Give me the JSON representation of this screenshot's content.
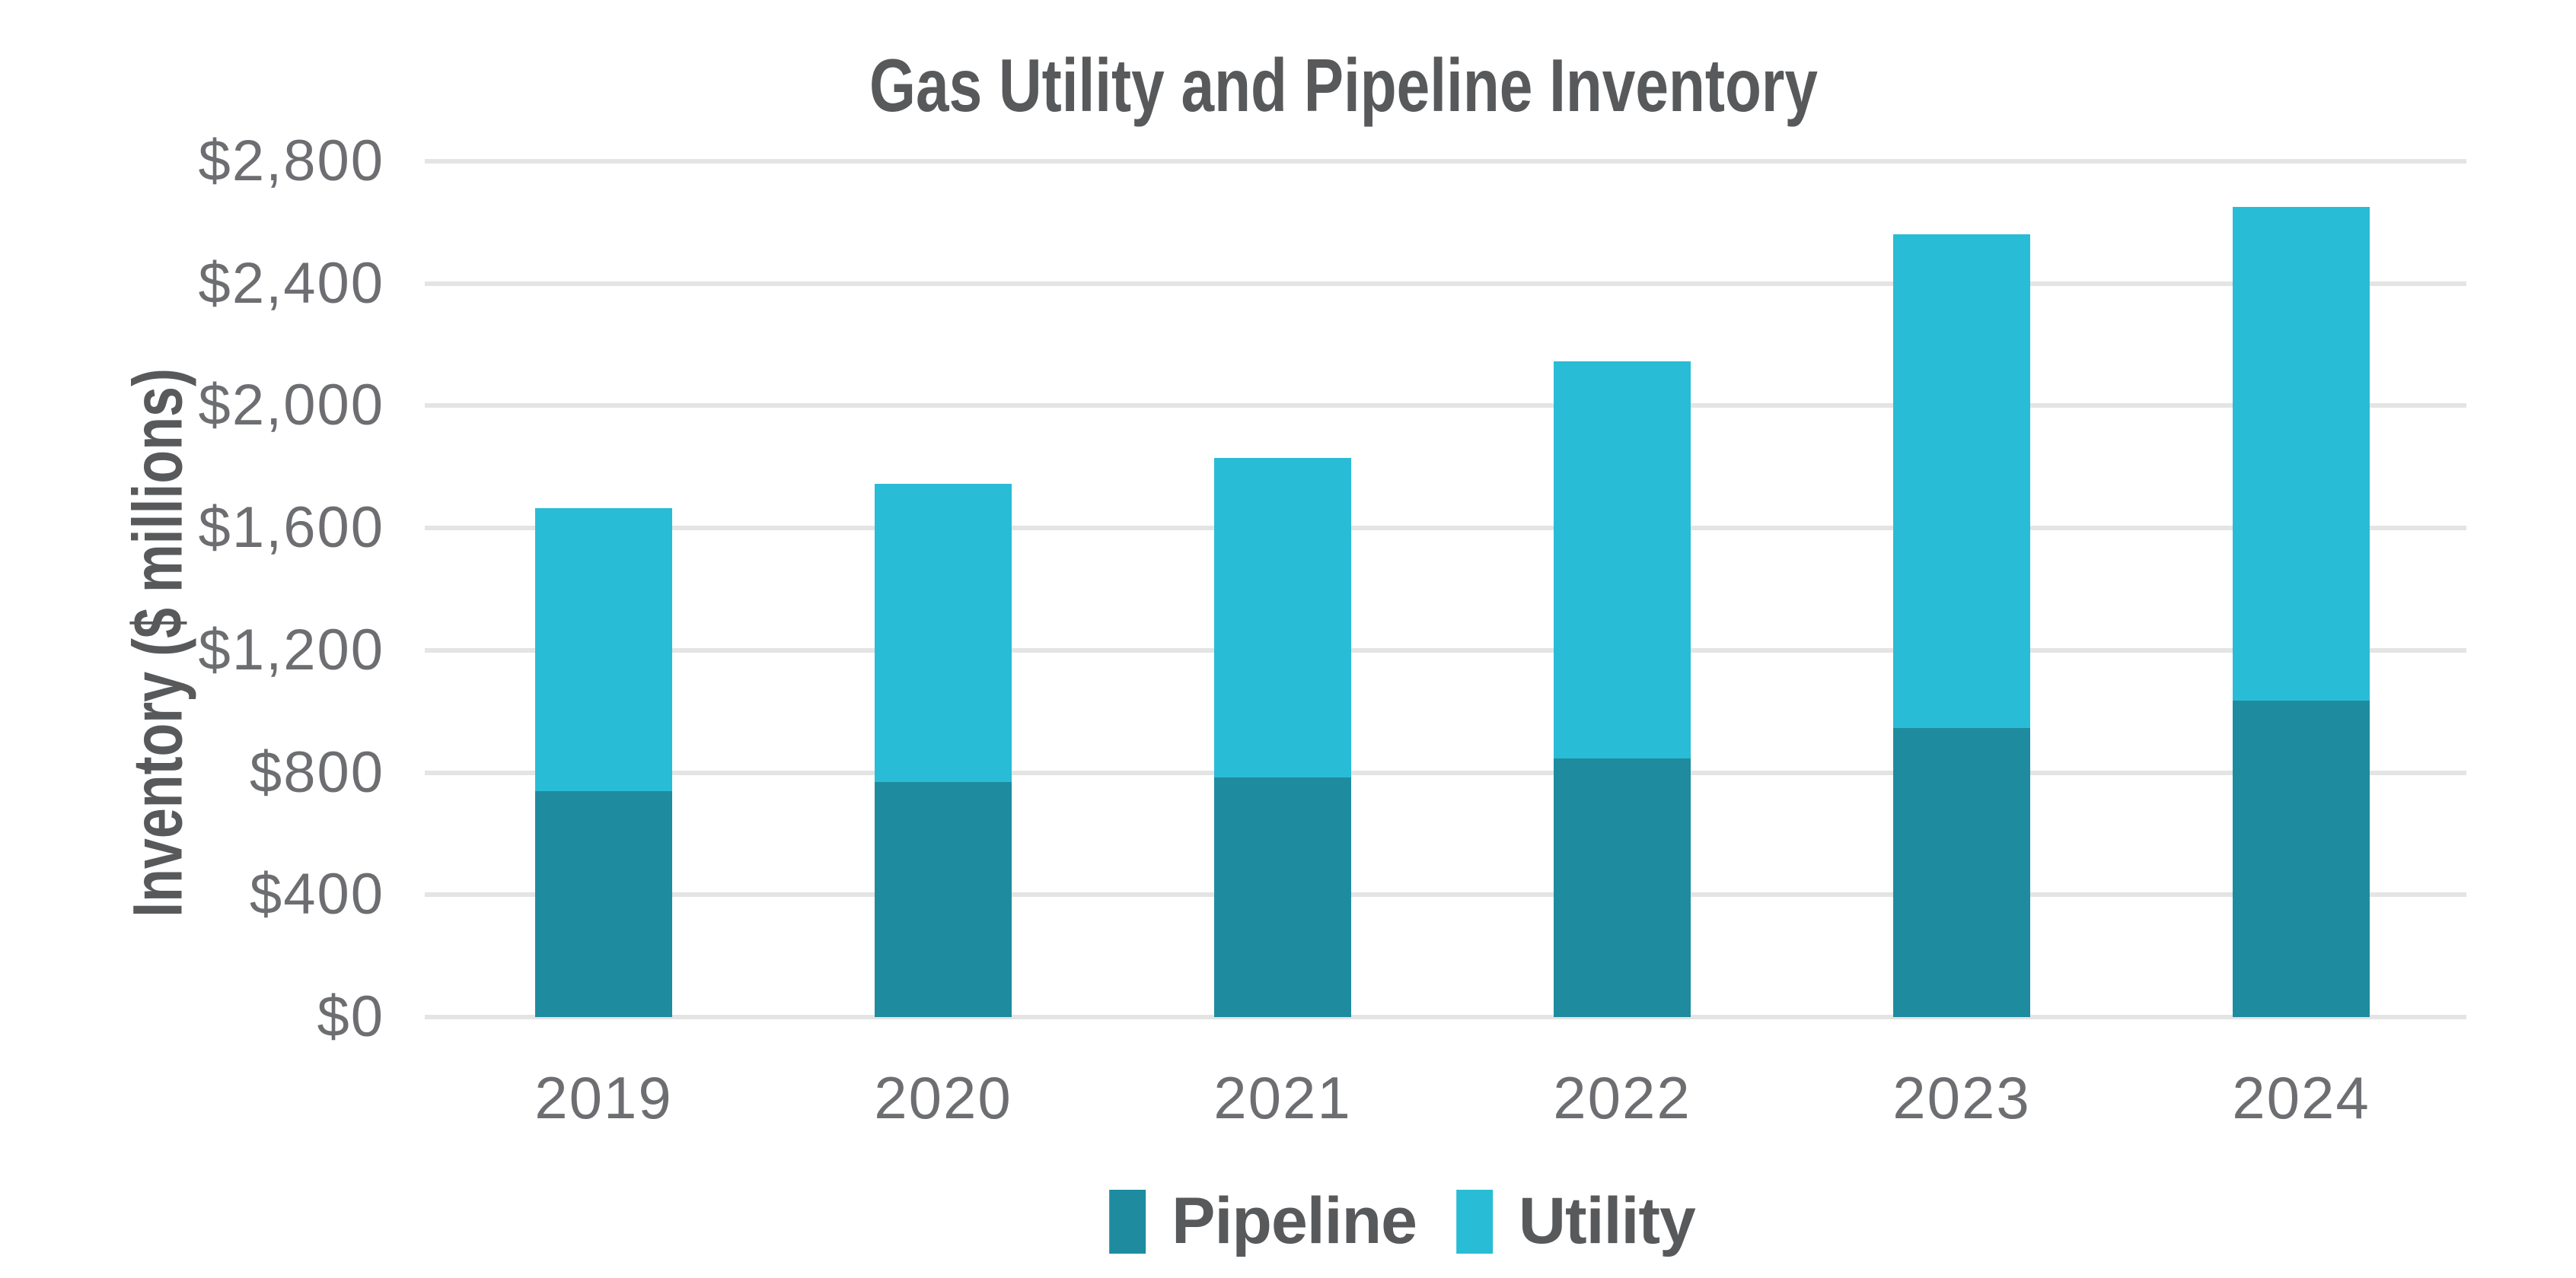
{
  "chart_data": {
    "type": "bar",
    "stacked": true,
    "title": "Gas Utility and Pipeline Inventory",
    "xlabel": "",
    "ylabel": "Inventory ($ millions)",
    "categories": [
      "2019",
      "2020",
      "2021",
      "2022",
      "2023",
      "2024"
    ],
    "series": [
      {
        "name": "Pipeline",
        "color": "#1E8C9E",
        "values": [
          740,
          770,
          785,
          845,
          945,
          1035
        ]
      },
      {
        "name": "Utility",
        "color": "#29BCD6",
        "values": [
          925,
          975,
          1045,
          1300,
          1615,
          1615
        ]
      }
    ],
    "totals": [
      1665,
      1745,
      1830,
      2145,
      2560,
      2650
    ],
    "ylim": [
      0,
      2800
    ],
    "ytick_step": 400,
    "yticks": [
      {
        "label": "$0",
        "value": 0
      },
      {
        "label": "$400",
        "value": 400
      },
      {
        "label": "$800",
        "value": 800
      },
      {
        "label": "$1,200",
        "value": 1200
      },
      {
        "label": "$1,600",
        "value": 1600
      },
      {
        "label": "$2,000",
        "value": 2000
      },
      {
        "label": "$2,400",
        "value": 2400
      },
      {
        "label": "$2,800",
        "value": 2800
      }
    ],
    "grid": true,
    "legend_position": "bottom",
    "style": {
      "background": "#FFFFFF",
      "title_color": "#58595B",
      "axis_text_color": "#6D6E71",
      "gridline_color": "#E4E4E4"
    }
  }
}
